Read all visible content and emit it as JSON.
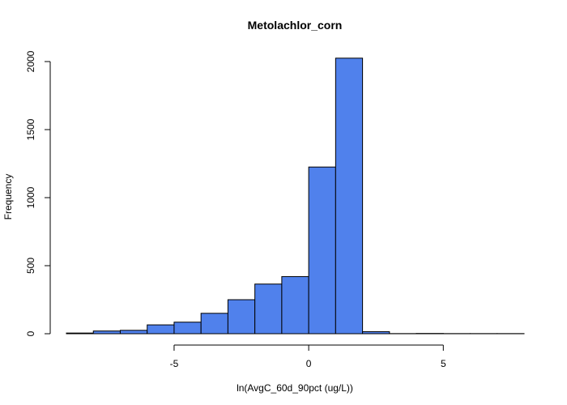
{
  "chart_data": {
    "type": "bar",
    "title": "Metolachlor_corn",
    "xlabel": "ln(AvgC_60d_90pct (ug/L))",
    "ylabel": "Frequency",
    "bar_color": "#5081ec",
    "x_ticks": [
      -5,
      0,
      5
    ],
    "x_tick_labels": [
      "-5",
      "0",
      "5"
    ],
    "y_ticks": [
      0,
      500,
      1000,
      1500,
      2000
    ],
    "y_tick_labels": [
      "0",
      "500",
      "1000",
      "1500",
      "2000"
    ],
    "xlim": [
      -9,
      8
    ],
    "ylim": [
      0,
      2000
    ],
    "bins": [
      {
        "x0": -9,
        "x1": -8,
        "value": 5
      },
      {
        "x0": -8,
        "x1": -7,
        "value": 20
      },
      {
        "x0": -7,
        "x1": -6,
        "value": 25
      },
      {
        "x0": -6,
        "x1": -5,
        "value": 65
      },
      {
        "x0": -5,
        "x1": -4,
        "value": 85
      },
      {
        "x0": -4,
        "x1": -3,
        "value": 150
      },
      {
        "x0": -3,
        "x1": -2,
        "value": 250
      },
      {
        "x0": -2,
        "x1": -1,
        "value": 365
      },
      {
        "x0": -1,
        "x1": 0,
        "value": 420
      },
      {
        "x0": 0,
        "x1": 1,
        "value": 1225
      },
      {
        "x0": 1,
        "x1": 2,
        "value": 2025
      },
      {
        "x0": 2,
        "x1": 3,
        "value": 15
      },
      {
        "x0": 3,
        "x1": 4,
        "value": 1
      },
      {
        "x0": 4,
        "x1": 5,
        "value": 2
      },
      {
        "x0": 5,
        "x1": 6,
        "value": 1
      },
      {
        "x0": 6,
        "x1": 7,
        "value": 1
      },
      {
        "x0": 7,
        "x1": 8,
        "value": 1
      }
    ],
    "grid": false,
    "legend": "none"
  }
}
